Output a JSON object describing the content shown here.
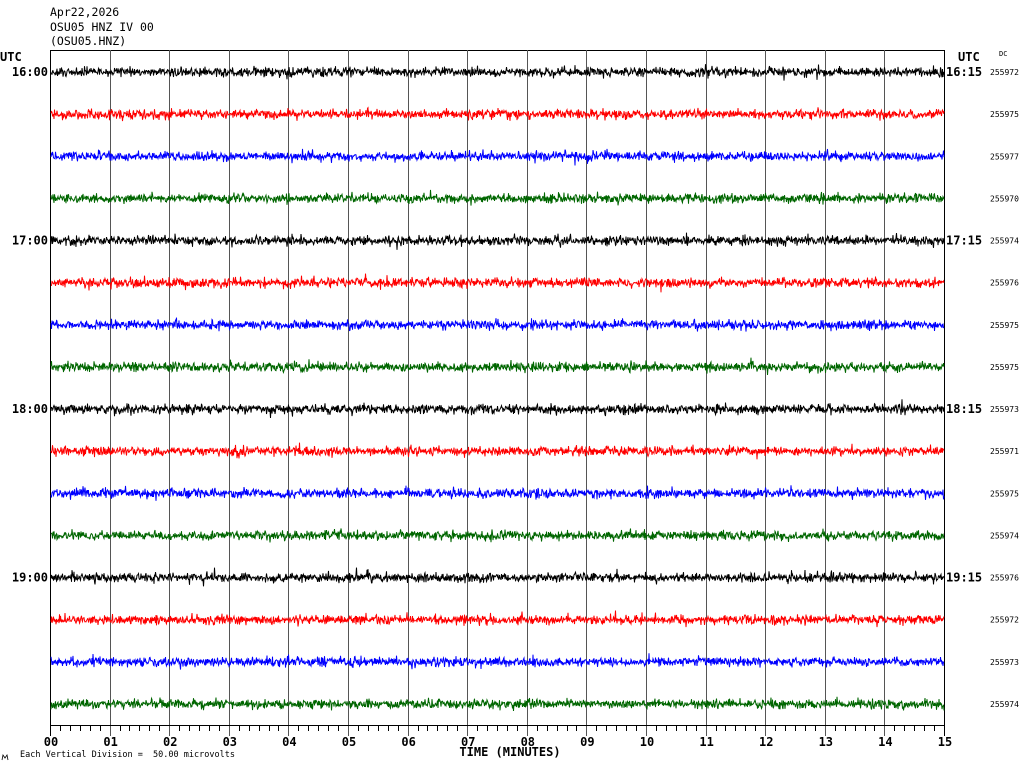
{
  "chart_data": {
    "type": "line",
    "title_lines": [
      "Apr22,2026",
      "OSU05 HNZ IV 00",
      "(OSU05.HNZ)"
    ],
    "left_axis_label": "UTC",
    "right_axis_label": "UTC",
    "right_column_label": "DC",
    "xlabel": "TIME (MINUTES)",
    "xlim": [
      0,
      15
    ],
    "x_ticks": [
      "00",
      "01",
      "02",
      "03",
      "04",
      "05",
      "06",
      "07",
      "08",
      "09",
      "10",
      "11",
      "12",
      "13",
      "14",
      "15"
    ],
    "grid": true,
    "rows": [
      {
        "left_label": "16:00",
        "right_label": "16:15",
        "color": "#000000",
        "dc": 255972
      },
      {
        "color": "#ff0000",
        "dc": 255975
      },
      {
        "color": "#0000ff",
        "dc": 255977
      },
      {
        "color": "#006600",
        "dc": 255970
      },
      {
        "left_label": "17:00",
        "right_label": "17:15",
        "color": "#000000",
        "dc": 255974
      },
      {
        "color": "#ff0000",
        "dc": 255976
      },
      {
        "color": "#0000ff",
        "dc": 255975
      },
      {
        "color": "#006600",
        "dc": 255975
      },
      {
        "left_label": "18:00",
        "right_label": "18:15",
        "color": "#000000",
        "dc": 255973
      },
      {
        "color": "#ff0000",
        "dc": 255971
      },
      {
        "color": "#0000ff",
        "dc": 255975
      },
      {
        "color": "#006600",
        "dc": 255974
      },
      {
        "left_label": "19:00",
        "right_label": "19:15",
        "color": "#000000",
        "dc": 255976
      },
      {
        "color": "#ff0000",
        "dc": 255972
      },
      {
        "color": "#0000ff",
        "dc": 255973
      },
      {
        "color": "#006600",
        "dc": 255974
      }
    ],
    "scale_note": "Each Vertical Division =  50.00 microvolts"
  }
}
